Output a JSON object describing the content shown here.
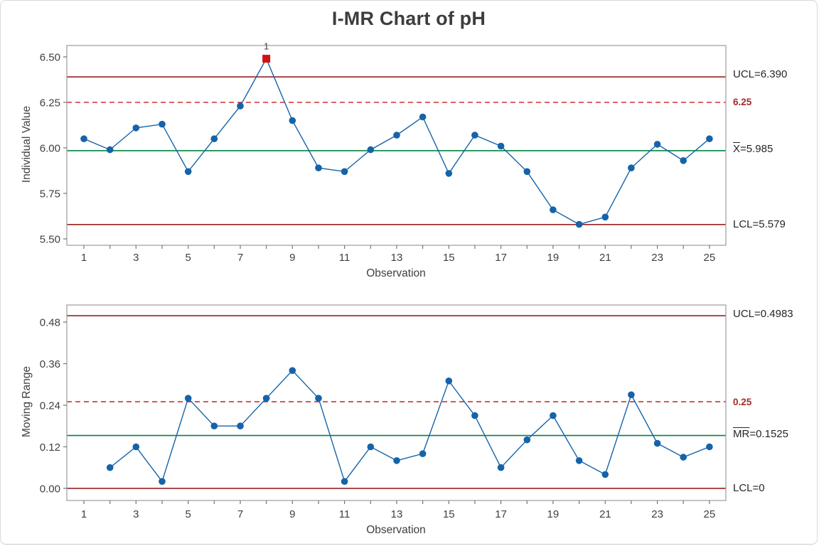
{
  "title": "I-MR Chart of pH",
  "colors": {
    "point_blue": "#1563a9",
    "limit_line": "#9a2121",
    "center_line": "#00843e",
    "ref_line": "#d32f2f",
    "ooc_red": "#d31212",
    "frame_gray": "#a3a3a3",
    "tick_gray": "#767676"
  },
  "chart_data": [
    {
      "name": "ichart",
      "type": "line",
      "ylabel": "Individual Value",
      "xlabel": "Observation",
      "x": [
        1,
        2,
        3,
        4,
        5,
        6,
        7,
        8,
        9,
        10,
        11,
        12,
        13,
        14,
        15,
        16,
        17,
        18,
        19,
        20,
        21,
        22,
        23,
        24,
        25
      ],
      "values": [
        6.05,
        5.99,
        6.11,
        6.13,
        5.87,
        6.05,
        6.23,
        6.49,
        6.15,
        5.89,
        5.87,
        5.99,
        6.07,
        6.17,
        5.86,
        6.07,
        6.01,
        5.87,
        5.66,
        5.58,
        5.62,
        5.89,
        6.02,
        5.93,
        6.05
      ],
      "xlim": [
        0.345,
        25.63
      ],
      "ylim": [
        5.465,
        6.5625
      ],
      "ytick_values": [
        6.5,
        6.25,
        6.0,
        5.75,
        5.5
      ],
      "ytick_labels": [
        "6.50",
        "6.25",
        "6.00",
        "5.75",
        "5.50"
      ],
      "xtick_labels": [
        "1",
        "",
        "3",
        "",
        "5",
        "",
        "7",
        "",
        "9",
        "",
        "11",
        "",
        "13",
        "",
        "15",
        "",
        "17",
        "",
        "19",
        "",
        "21",
        "",
        "23",
        "",
        "25"
      ],
      "lines": [
        {
          "id": "ucl",
          "value": 6.39,
          "style": "solid",
          "color_key": "limit_line"
        },
        {
          "id": "ref",
          "value": 6.25,
          "style": "dashed",
          "color_key": "ref_line"
        },
        {
          "id": "center",
          "value": 5.985,
          "style": "solid",
          "color_key": "center_line"
        },
        {
          "id": "lcl",
          "value": 5.579,
          "style": "solid",
          "color_key": "limit_line"
        }
      ],
      "line_labels": {
        "ucl": "UCL=6.390",
        "ref": "6.25",
        "center_bar": "X",
        "center_rest": "=5.985",
        "lcl": "LCL=5.579"
      },
      "special_points": [
        {
          "x": 8,
          "marker": "square",
          "flag": "1"
        }
      ]
    },
    {
      "name": "mrchart",
      "type": "line",
      "ylabel": "Moving Range",
      "xlabel": "Observation",
      "x": [
        1,
        2,
        3,
        4,
        5,
        6,
        7,
        8,
        9,
        10,
        11,
        12,
        13,
        14,
        15,
        16,
        17,
        18,
        19,
        20,
        21,
        22,
        23,
        24,
        25
      ],
      "values": [
        null,
        0.06,
        0.12,
        0.02,
        0.26,
        0.18,
        0.18,
        0.26,
        0.34,
        0.26,
        0.02,
        0.12,
        0.08,
        0.1,
        0.31,
        0.21,
        0.06,
        0.14,
        0.21,
        0.08,
        0.04,
        0.27,
        0.13,
        0.09,
        0.12
      ],
      "xlim": [
        0.345,
        25.63
      ],
      "ylim": [
        -0.035,
        0.5292
      ],
      "ytick_values": [
        0.48,
        0.36,
        0.24,
        0.12,
        0.0
      ],
      "ytick_labels": [
        "0.48",
        "0.36",
        "0.24",
        "0.12",
        "0.00"
      ],
      "xtick_labels": [
        "1",
        "",
        "3",
        "",
        "5",
        "",
        "7",
        "",
        "9",
        "",
        "11",
        "",
        "13",
        "",
        "15",
        "",
        "17",
        "",
        "19",
        "",
        "21",
        "",
        "23",
        "",
        "25"
      ],
      "lines": [
        {
          "id": "ucl",
          "value": 0.4983,
          "style": "solid",
          "color_key": "limit_line"
        },
        {
          "id": "ref",
          "value": 0.25,
          "style": "dashed",
          "color_key": "ref_line"
        },
        {
          "id": "center",
          "value": 0.1525,
          "style": "solid",
          "color_key": "center_line"
        },
        {
          "id": "lcl",
          "value": 0,
          "style": "solid",
          "color_key": "limit_line"
        }
      ],
      "line_labels": {
        "ucl": "UCL=0.4983",
        "ref": "0.25",
        "center_bar": "MR",
        "center_rest": "=0.1525",
        "lcl": "LCL=0"
      },
      "special_points": []
    }
  ]
}
